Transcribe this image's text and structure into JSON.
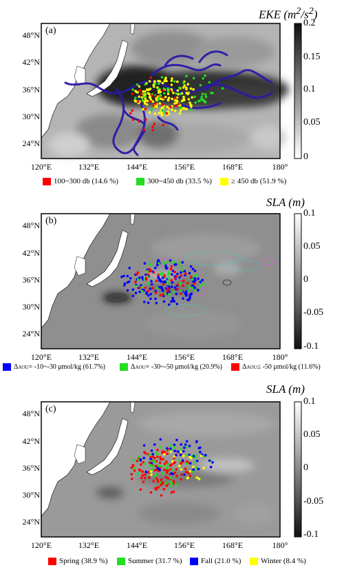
{
  "colors": {
    "red": "#ff0000",
    "green": "#22dd22",
    "yellow": "#ffff00",
    "blue": "#0000ff",
    "track": "#2a1aa8"
  },
  "lat_labels": [
    "48°N",
    "42°N",
    "36°N",
    "30°N",
    "24°N"
  ],
  "lon_labels": [
    "120°E",
    "132°E",
    "144°E",
    "156°E",
    "168°E",
    "180°"
  ],
  "panels": [
    {
      "label": "(a)",
      "colorbar": {
        "title_html": "EKE (m<sup>2</sup>/s<sup>2</sup>)",
        "ticks": [
          "0.2",
          "0.15",
          "0.1",
          "0.05",
          "0"
        ],
        "scale": "white-to-black"
      },
      "legend": [
        {
          "color": "red",
          "text": "100~300 db (14.6 %)"
        },
        {
          "color": "green",
          "text": "300~450 db (33.5 %)"
        },
        {
          "color": "yellow",
          "text": "≥ 450 db (51.9 %)"
        }
      ]
    },
    {
      "label": "(b)",
      "colorbar": {
        "title": "SLA (m)",
        "ticks": [
          "0.1",
          "0.05",
          "0",
          "-0.05",
          "-0.1"
        ],
        "scale": "black-to-white"
      },
      "legend": [
        {
          "color": "blue",
          "prefix": "Δ",
          "sub": "AOU",
          "text": " = -10~-30 μmol/kg (61.7%)"
        },
        {
          "color": "green",
          "prefix": "Δ",
          "sub": "AOU",
          "text": "= -30~-50 μmol/kg (20.9%)"
        },
        {
          "color": "red",
          "prefix": "Δ",
          "sub": "AOU",
          "text": " ≤ -50 μmol/kg (11.6%)"
        }
      ]
    },
    {
      "label": "(c)",
      "colorbar": {
        "title": "SLA (m)",
        "ticks": [
          "0.1",
          "0.05",
          "0",
          "-0.05",
          "-0.1"
        ],
        "scale": "black-to-white"
      },
      "legend": [
        {
          "color": "red",
          "text": "Spring (38.9 %)"
        },
        {
          "color": "green",
          "text": "Summer (31.7 %)"
        },
        {
          "color": "blue",
          "text": "Fall (21.0 %)"
        },
        {
          "color": "yellow",
          "text": "Winter (8.4 %)"
        }
      ]
    }
  ]
}
